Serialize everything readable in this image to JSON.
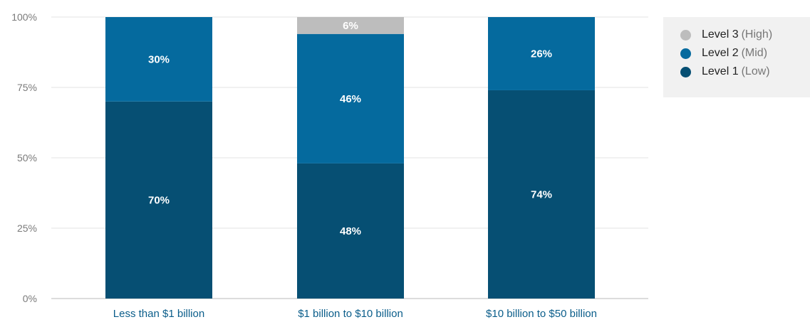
{
  "chart_data": {
    "type": "bar",
    "stacked": true,
    "categories": [
      "Less than $1 billion",
      "$1 billion to $10 billion",
      "$10 billion to $50 billion"
    ],
    "series": [
      {
        "name": "Level 1",
        "qualifier": "(Low)",
        "color": "#064f73",
        "values": [
          70,
          48,
          74
        ]
      },
      {
        "name": "Level 2",
        "qualifier": "(Mid)",
        "color": "#056a9e",
        "values": [
          30,
          46,
          26
        ]
      },
      {
        "name": "Level 3",
        "qualifier": "(High)",
        "color": "#bdbdbd",
        "values": [
          0,
          6,
          0
        ]
      }
    ],
    "value_suffix": "%",
    "ylim": [
      0,
      100
    ],
    "yticks": [
      0,
      25,
      50,
      75,
      100
    ],
    "ytick_labels": [
      "0%",
      "25%",
      "50%",
      "75%",
      "100%"
    ],
    "grid": true,
    "legend_position": "top-right",
    "title": "",
    "xlabel": "",
    "ylabel": ""
  }
}
